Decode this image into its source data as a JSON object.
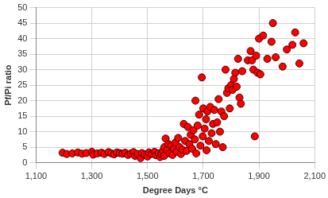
{
  "chart_data": {
    "type": "scatter",
    "x_label": "Degree Days °C",
    "y_label": "Pf/Pi ratio",
    "x": [
      1195,
      1210,
      1230,
      1250,
      1265,
      1280,
      1300,
      1305,
      1320,
      1335,
      1345,
      1360,
      1370,
      1380,
      1390,
      1400,
      1410,
      1420,
      1430,
      1440,
      1450,
      1455,
      1465,
      1475,
      1480,
      1490,
      1500,
      1505,
      1515,
      1525,
      1530,
      1540,
      1545,
      1550,
      1555,
      1560,
      1560,
      1565,
      1570,
      1575,
      1580,
      1585,
      1590,
      1595,
      1600,
      1605,
      1610,
      1615,
      1620,
      1625,
      1630,
      1635,
      1640,
      1645,
      1650,
      1655,
      1660,
      1665,
      1670,
      1672,
      1675,
      1680,
      1685,
      1690,
      1695,
      1698,
      1700,
      1705,
      1710,
      1712,
      1715,
      1720,
      1725,
      1730,
      1735,
      1740,
      1745,
      1750,
      1755,
      1760,
      1765,
      1770,
      1775,
      1780,
      1785,
      1790,
      1795,
      1800,
      1805,
      1810,
      1815,
      1820,
      1825,
      1830,
      1835,
      1840,
      1860,
      1870,
      1875,
      1880,
      1885,
      1890,
      1895,
      1900,
      1905,
      1915,
      1930,
      1945,
      1950,
      1960,
      1985,
      2000,
      2020,
      2030,
      2045,
      2060
    ],
    "values": [
      3.2,
      2.8,
      3.0,
      3.3,
      2.9,
      3.1,
      3.5,
      2.6,
      3.0,
      3.2,
      2.8,
      3.4,
      3.0,
      2.7,
      3.3,
      3.1,
      2.9,
      3.2,
      2.5,
      3.0,
      3.4,
      2.2,
      2.8,
      1.5,
      3.1,
      2.6,
      2.0,
      3.3,
      2.8,
      3.5,
      2.4,
      3.0,
      1.8,
      2.7,
      3.8,
      5.0,
      2.2,
      7.8,
      4.0,
      6.0,
      3.0,
      5.5,
      2.5,
      4.5,
      6.5,
      3.5,
      8.0,
      5.0,
      2.8,
      4.2,
      12.5,
      7.0,
      3.8,
      11.5,
      6.0,
      9.0,
      4.5,
      10.5,
      7.5,
      20.0,
      3.0,
      12.0,
      15.5,
      5.5,
      27.5,
      8.5,
      17.5,
      11.0,
      14.0,
      4.0,
      16.5,
      7.0,
      18.0,
      9.5,
      12.5,
      17.0,
      6.0,
      13.0,
      20.5,
      10.0,
      16.5,
      5.0,
      15.0,
      30.0,
      22.5,
      24.0,
      17.5,
      25.0,
      23.5,
      27.0,
      29.0,
      24.5,
      33.5,
      21.0,
      19.0,
      29.5,
      33.0,
      36.0,
      33.0,
      30.0,
      8.5,
      34.5,
      29.0,
      40.0,
      28.5,
      41.0,
      33.5,
      39.0,
      45.0,
      34.0,
      31.0,
      36.5,
      38.0,
      42.0,
      32.0,
      38.5
    ],
    "color": "#ff0000",
    "marker": "circle",
    "xlim": [
      1100,
      2100
    ],
    "xticks": [
      1100,
      1300,
      1500,
      1700,
      1900,
      2100
    ],
    "ylim": [
      0,
      50
    ],
    "yticks": [
      0,
      5,
      10,
      15,
      20,
      25,
      30,
      35,
      40,
      45,
      50
    ],
    "grid": true
  }
}
